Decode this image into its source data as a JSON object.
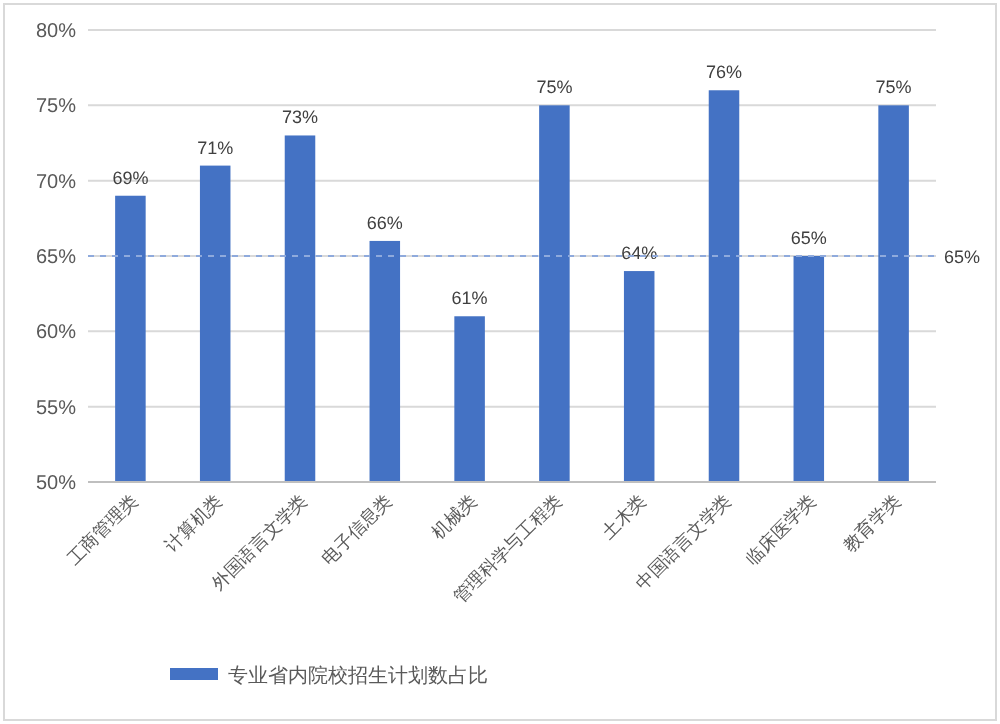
{
  "chart_data": {
    "type": "bar",
    "categories": [
      "工商管理类",
      "计算机类",
      "外国语言文学类",
      "电子信息类",
      "机械类",
      "管理科学与工程类",
      "土木类",
      "中国语言文学类",
      "临床医学类",
      "教育学类"
    ],
    "series": [
      {
        "name": "专业省内院校招生计划数占比",
        "color": "#4472c4",
        "values": [
          69,
          71,
          73,
          66,
          61,
          75,
          64,
          76,
          65,
          75
        ]
      }
    ],
    "value_labels": [
      "69%",
      "71%",
      "73%",
      "66%",
      "61%",
      "75%",
      "64%",
      "76%",
      "65%",
      "75%"
    ],
    "ylim": [
      50,
      80
    ],
    "yticks": [
      {
        "value": 50,
        "label": "50%"
      },
      {
        "value": 55,
        "label": "55%"
      },
      {
        "value": 60,
        "label": "60%"
      },
      {
        "value": 65,
        "label": "65%"
      },
      {
        "value": 70,
        "label": "70%"
      },
      {
        "value": 75,
        "label": "75%"
      },
      {
        "value": 80,
        "label": "80%"
      }
    ],
    "grid": "y",
    "legend": "bottom",
    "ref_lines": [
      {
        "axis": "y",
        "value": 65,
        "label": "65%",
        "color": "#8faadc",
        "line_style": "dashed"
      }
    ]
  }
}
